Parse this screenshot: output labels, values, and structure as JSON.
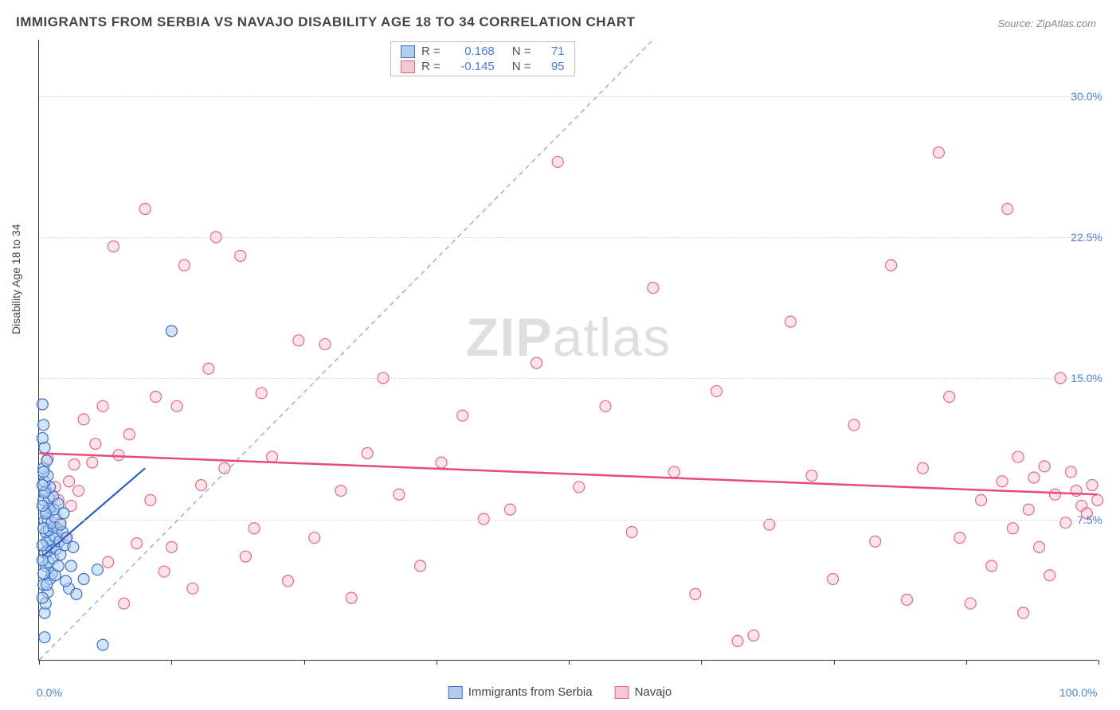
{
  "title": "IMMIGRANTS FROM SERBIA VS NAVAJO DISABILITY AGE 18 TO 34 CORRELATION CHART",
  "source_label": "Source: ",
  "source_name": "ZipAtlas.com",
  "ylabel": "Disability Age 18 to 34",
  "watermark_bold": "ZIP",
  "watermark_light": "atlas",
  "chart": {
    "type": "scatter",
    "xlim": [
      0,
      100
    ],
    "ylim": [
      0,
      33
    ],
    "x_tick_positions": [
      0,
      12.5,
      25,
      37.5,
      50,
      62.5,
      75,
      87.5,
      100
    ],
    "x_tick_labels_shown": {
      "0": "0.0%",
      "100": "100.0%"
    },
    "y_gridlines": [
      7.5,
      15.0,
      22.5,
      30.0
    ],
    "y_tick_labels": [
      "7.5%",
      "15.0%",
      "22.5%",
      "30.0%"
    ],
    "background_color": "#ffffff",
    "grid_color": "#dddddd",
    "tick_label_color": "#4a7fd8",
    "axis_label_color": "#444444",
    "marker_radius": 7,
    "marker_stroke_width": 1.2,
    "series": [
      {
        "name": "Immigrants from Serbia",
        "fill": "#b0cdf0",
        "stroke": "#3b6fc9",
        "fill_opacity": 0.55,
        "R": "0.168",
        "N": "71",
        "trend": {
          "x1": 0.3,
          "y1": 5.5,
          "x2": 10.0,
          "y2": 10.2,
          "color": "#2b5fc0",
          "width": 2.2,
          "dash": ""
        },
        "points": [
          [
            0.5,
            1.2
          ],
          [
            0.5,
            2.5
          ],
          [
            0.6,
            3.0
          ],
          [
            0.8,
            3.6
          ],
          [
            0.4,
            4.0
          ],
          [
            1.0,
            4.3
          ],
          [
            0.7,
            4.0
          ],
          [
            1.2,
            4.6
          ],
          [
            1.5,
            4.5
          ],
          [
            0.6,
            5.0
          ],
          [
            0.9,
            5.2
          ],
          [
            1.3,
            5.4
          ],
          [
            1.8,
            5.0
          ],
          [
            0.5,
            5.7
          ],
          [
            0.8,
            5.8
          ],
          [
            1.1,
            6.0
          ],
          [
            1.6,
            5.9
          ],
          [
            2.0,
            5.6
          ],
          [
            0.7,
            6.3
          ],
          [
            1.0,
            6.4
          ],
          [
            1.4,
            6.6
          ],
          [
            1.9,
            6.3
          ],
          [
            2.4,
            6.1
          ],
          [
            0.6,
            6.8
          ],
          [
            0.9,
            6.9
          ],
          [
            1.3,
            7.1
          ],
          [
            1.7,
            7.0
          ],
          [
            2.2,
            6.8
          ],
          [
            0.5,
            7.4
          ],
          [
            0.8,
            7.5
          ],
          [
            1.2,
            7.3
          ],
          [
            1.5,
            7.6
          ],
          [
            0.7,
            7.9
          ],
          [
            1.0,
            8.1
          ],
          [
            1.4,
            8.0
          ],
          [
            0.4,
            8.5
          ],
          [
            0.9,
            8.6
          ],
          [
            1.3,
            8.7
          ],
          [
            0.6,
            9.0
          ],
          [
            1.0,
            9.2
          ],
          [
            0.5,
            9.5
          ],
          [
            0.8,
            9.8
          ],
          [
            0.4,
            10.2
          ],
          [
            0.7,
            10.6
          ],
          [
            0.5,
            11.3
          ],
          [
            0.3,
            13.6
          ],
          [
            2.8,
            3.8
          ],
          [
            3.5,
            3.5
          ],
          [
            4.2,
            4.3
          ],
          [
            5.5,
            4.8
          ],
          [
            6.0,
            0.8
          ],
          [
            2.5,
            4.2
          ],
          [
            3.0,
            5.0
          ],
          [
            2.0,
            7.2
          ],
          [
            2.6,
            6.5
          ],
          [
            3.2,
            6.0
          ],
          [
            1.8,
            8.3
          ],
          [
            2.3,
            7.8
          ],
          [
            0.3,
            6.1
          ],
          [
            0.4,
            7.0
          ],
          [
            0.6,
            7.8
          ],
          [
            0.3,
            8.2
          ],
          [
            0.5,
            8.9
          ],
          [
            0.3,
            5.3
          ],
          [
            0.4,
            4.6
          ],
          [
            0.3,
            3.3
          ],
          [
            0.3,
            9.3
          ],
          [
            0.4,
            10.0
          ],
          [
            0.3,
            11.8
          ],
          [
            0.4,
            12.5
          ],
          [
            12.5,
            17.5
          ]
        ]
      },
      {
        "name": "Navajo",
        "fill": "#f7c7d2",
        "stroke": "#e06a8a",
        "fill_opacity": 0.5,
        "R": "-0.145",
        "N": "95",
        "trend": {
          "x1": 0,
          "y1": 11.0,
          "x2": 100,
          "y2": 8.8,
          "color": "#e84a7a",
          "width": 2.5,
          "dash": ""
        },
        "points": [
          [
            0.8,
            10.7
          ],
          [
            1.5,
            9.2
          ],
          [
            1.8,
            8.5
          ],
          [
            2.0,
            7.3
          ],
          [
            2.5,
            6.5
          ],
          [
            2.8,
            9.5
          ],
          [
            3.0,
            8.2
          ],
          [
            3.3,
            10.4
          ],
          [
            3.7,
            9.0
          ],
          [
            4.2,
            12.8
          ],
          [
            5.0,
            10.5
          ],
          [
            5.3,
            11.5
          ],
          [
            6.0,
            13.5
          ],
          [
            6.5,
            5.2
          ],
          [
            7.0,
            22.0
          ],
          [
            7.5,
            10.9
          ],
          [
            8.0,
            3.0
          ],
          [
            8.5,
            12.0
          ],
          [
            9.2,
            6.2
          ],
          [
            10.0,
            24.0
          ],
          [
            10.5,
            8.5
          ],
          [
            11.0,
            14.0
          ],
          [
            11.8,
            4.7
          ],
          [
            12.5,
            6.0
          ],
          [
            13.0,
            13.5
          ],
          [
            13.7,
            21.0
          ],
          [
            14.5,
            3.8
          ],
          [
            15.3,
            9.3
          ],
          [
            16.0,
            15.5
          ],
          [
            16.7,
            22.5
          ],
          [
            17.5,
            10.2
          ],
          [
            19.0,
            21.5
          ],
          [
            19.5,
            5.5
          ],
          [
            20.3,
            7.0
          ],
          [
            21.0,
            14.2
          ],
          [
            22.0,
            10.8
          ],
          [
            23.5,
            4.2
          ],
          [
            24.5,
            17.0
          ],
          [
            26.0,
            6.5
          ],
          [
            27.0,
            16.8
          ],
          [
            28.5,
            9.0
          ],
          [
            29.5,
            3.3
          ],
          [
            31.0,
            11.0
          ],
          [
            32.5,
            15.0
          ],
          [
            34.0,
            8.8
          ],
          [
            36.0,
            5.0
          ],
          [
            38.0,
            10.5
          ],
          [
            40.0,
            13.0
          ],
          [
            42.0,
            7.5
          ],
          [
            44.5,
            8.0
          ],
          [
            47.0,
            15.8
          ],
          [
            49.0,
            26.5
          ],
          [
            51.0,
            9.2
          ],
          [
            53.5,
            13.5
          ],
          [
            56.0,
            6.8
          ],
          [
            58.0,
            19.8
          ],
          [
            60.0,
            10.0
          ],
          [
            62.0,
            3.5
          ],
          [
            64.0,
            14.3
          ],
          [
            66.0,
            1.0
          ],
          [
            67.5,
            1.3
          ],
          [
            69.0,
            7.2
          ],
          [
            71.0,
            18.0
          ],
          [
            73.0,
            9.8
          ],
          [
            75.0,
            4.3
          ],
          [
            77.0,
            12.5
          ],
          [
            79.0,
            6.3
          ],
          [
            80.5,
            21.0
          ],
          [
            82.0,
            3.2
          ],
          [
            83.5,
            10.2
          ],
          [
            85.0,
            27.0
          ],
          [
            86.0,
            14.0
          ],
          [
            87.0,
            6.5
          ],
          [
            88.0,
            3.0
          ],
          [
            89.0,
            8.5
          ],
          [
            90.0,
            5.0
          ],
          [
            91.0,
            9.5
          ],
          [
            91.5,
            24.0
          ],
          [
            92.0,
            7.0
          ],
          [
            92.5,
            10.8
          ],
          [
            93.0,
            2.5
          ],
          [
            93.5,
            8.0
          ],
          [
            94.0,
            9.7
          ],
          [
            94.5,
            6.0
          ],
          [
            95.0,
            10.3
          ],
          [
            95.5,
            4.5
          ],
          [
            96.0,
            8.8
          ],
          [
            96.5,
            15.0
          ],
          [
            97.0,
            7.3
          ],
          [
            97.5,
            10.0
          ],
          [
            98.0,
            9.0
          ],
          [
            98.5,
            8.2
          ],
          [
            99.0,
            7.8
          ],
          [
            99.5,
            9.3
          ],
          [
            100.0,
            8.5
          ]
        ]
      }
    ],
    "identity_line": {
      "color": "#6a8fd0",
      "width": 1,
      "dash": "6 5"
    }
  },
  "legend_bottom": {
    "s1_label": "Immigrants from Serbia",
    "s2_label": "Navajo"
  },
  "legend_top": {
    "r_label": "R  =",
    "n_label": "N  ="
  }
}
